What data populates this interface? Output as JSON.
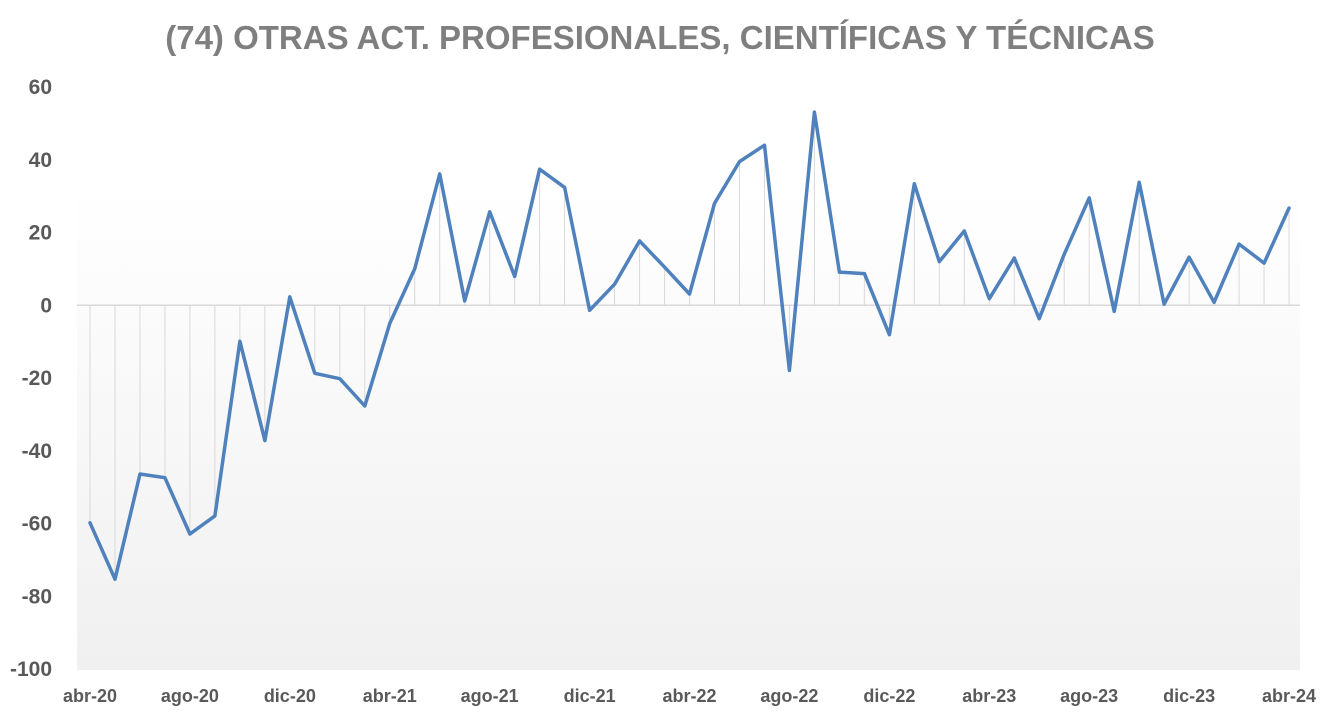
{
  "chart_data": {
    "type": "line",
    "title": "(74) OTRAS ACT. PROFESIONALES, CIENTÍFICAS Y TÉCNICAS",
    "xlabel": "",
    "ylabel": "",
    "ylim": [
      -100,
      60
    ],
    "yticks": [
      60,
      40,
      20,
      0,
      -20,
      -40,
      -60,
      -80,
      -100
    ],
    "xtick_labels": [
      "abr-20",
      "ago-20",
      "dic-20",
      "abr-21",
      "ago-21",
      "dic-21",
      "abr-22",
      "ago-22",
      "dic-22",
      "abr-23",
      "ago-23",
      "dic-23",
      "abr-24"
    ],
    "xtick_every": 4,
    "grid": "vertical drop lines to zero",
    "legend": "none",
    "categories": [
      "abr-20",
      "may-20",
      "jun-20",
      "jul-20",
      "ago-20",
      "sep-20",
      "oct-20",
      "nov-20",
      "dic-20",
      "ene-21",
      "feb-21",
      "mar-21",
      "abr-21",
      "may-21",
      "jun-21",
      "jul-21",
      "ago-21",
      "sep-21",
      "oct-21",
      "nov-21",
      "dic-21",
      "ene-22",
      "feb-22",
      "mar-22",
      "abr-22",
      "may-22",
      "jun-22",
      "jul-22",
      "ago-22",
      "sep-22",
      "oct-22",
      "nov-22",
      "dic-22",
      "ene-23",
      "feb-23",
      "mar-23",
      "abr-23",
      "may-23",
      "jun-23",
      "jul-23",
      "ago-23",
      "sep-23",
      "oct-23",
      "nov-23",
      "dic-23",
      "ene-24",
      "feb-24",
      "mar-24",
      "abr-24"
    ],
    "series": [
      {
        "values": [
          -59.8,
          -75.3,
          -46.4,
          -47.4,
          -62.9,
          -57.9,
          -9.9,
          -37.2,
          2.3,
          -18.7,
          -20.2,
          -27.7,
          -5.0,
          10.0,
          36.1,
          1.2,
          25.7,
          7.9,
          37.4,
          32.4,
          -1.4,
          5.8,
          17.7,
          10.5,
          3.1,
          28.0,
          39.5,
          44.0,
          -17.9,
          53.1,
          9.1,
          8.7,
          -8.1,
          33.4,
          12.0,
          20.4,
          1.8,
          13.0,
          -3.7,
          14.0,
          29.5,
          -1.7,
          33.8,
          0.3,
          13.2,
          0.8,
          16.8,
          11.6,
          26.7
        ]
      }
    ],
    "colors": {
      "line": "#4f81bd",
      "droplines": "#d9d9d9",
      "zero_axis": "#d9d9d9",
      "title": "#7f7f7f",
      "tick_text": "#595959"
    }
  }
}
